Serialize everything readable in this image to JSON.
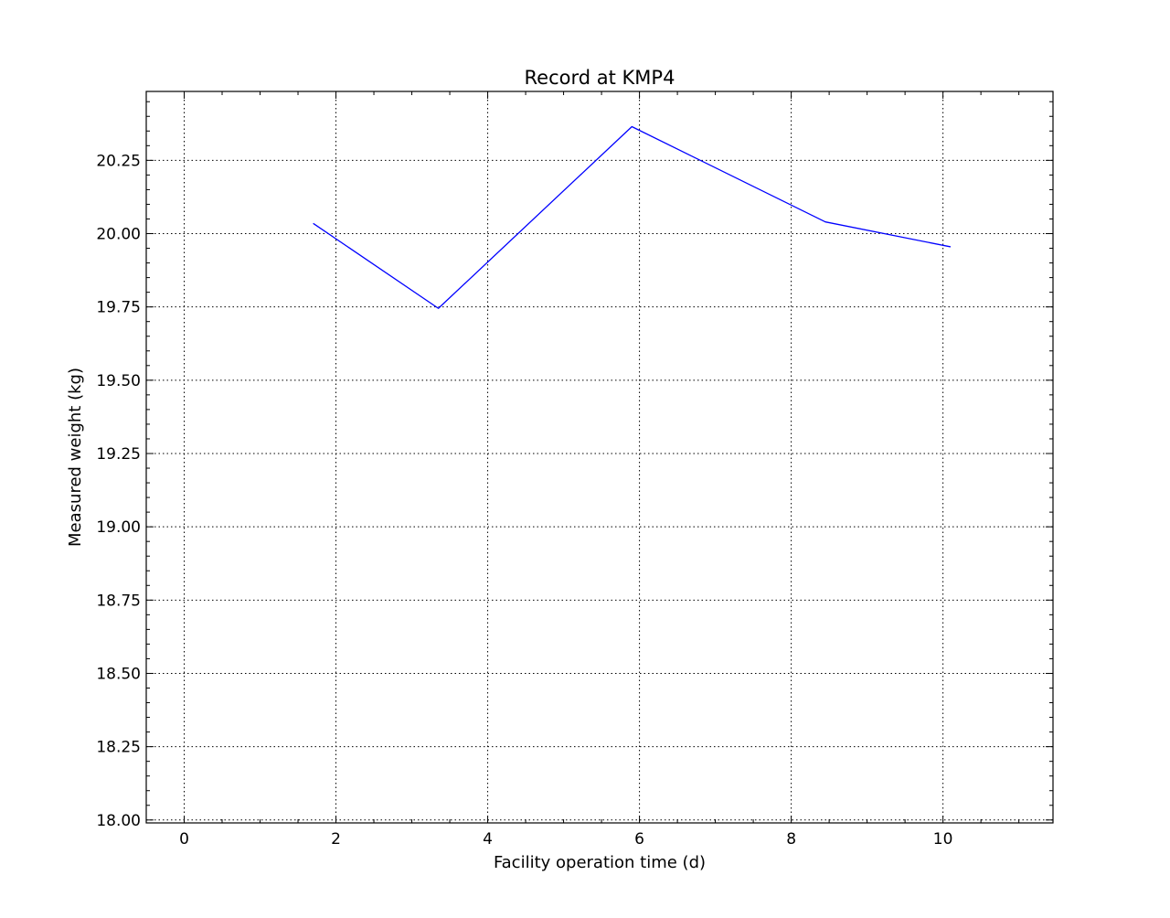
{
  "chart_data": {
    "type": "line",
    "title": "Record at KMP4",
    "xlabel": "Facility operation time (d)",
    "ylabel": "Measured weight (kg)",
    "xlim": [
      -0.5,
      11.45
    ],
    "ylim": [
      17.99,
      20.485
    ],
    "xticks": [
      0,
      2,
      4,
      6,
      8,
      10
    ],
    "xtick_labels": [
      "0",
      "2",
      "4",
      "6",
      "8",
      "10"
    ],
    "yticks": [
      18.0,
      18.25,
      18.5,
      18.75,
      19.0,
      19.25,
      19.5,
      19.75,
      20.0,
      20.25
    ],
    "ytick_labels": [
      "18.00",
      "18.25",
      "18.50",
      "18.75",
      "19.00",
      "19.25",
      "19.50",
      "19.75",
      "20.00",
      "20.25"
    ],
    "grid": true,
    "legend": null,
    "series": [
      {
        "color": "#0000ff",
        "x": [
          1.7,
          3.35,
          5.9,
          8.45,
          10.1
        ],
        "y": [
          20.035,
          19.745,
          20.365,
          20.04,
          19.955
        ]
      }
    ]
  }
}
